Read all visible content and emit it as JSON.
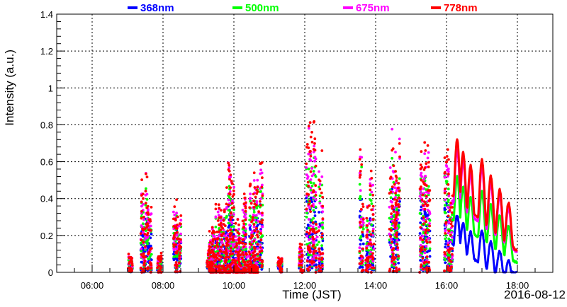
{
  "chart_data": {
    "type": "scatter",
    "title": "",
    "xlabel": "Time (JST)",
    "ylabel": "Intensity (a.u.)",
    "date_label": "2016-08-12",
    "x_unit": "hours JST",
    "xlim": [
      5.0,
      19.0
    ],
    "ylim": [
      0,
      1.4
    ],
    "x_ticks": [
      6,
      8,
      10,
      12,
      14,
      16,
      18
    ],
    "x_tick_labels": [
      "06:00",
      "08:00",
      "10:00",
      "12:00",
      "14:00",
      "16:00",
      "18:00"
    ],
    "y_ticks": [
      0,
      0.2,
      0.4,
      0.6,
      0.8,
      1,
      1.2,
      1.4
    ],
    "y_tick_labels": [
      "0",
      "0.2",
      "0.4",
      "0.6",
      "0.8",
      "1",
      "1.2",
      "1.4"
    ],
    "grid": true,
    "legend_position": "top",
    "series": [
      {
        "name": "368nm",
        "color": "#0000ff",
        "scale": 0.55
      },
      {
        "name": "500nm",
        "color": "#00ff00",
        "scale": 0.78
      },
      {
        "name": "675nm",
        "color": "#ff00ff",
        "scale": 0.93
      },
      {
        "name": "778nm",
        "color": "#ff0000",
        "scale": 1.0
      }
    ],
    "scatter_bursts": [
      {
        "t": 7.08,
        "max": 0.1
      },
      {
        "t": 7.42,
        "max": 0.45
      },
      {
        "t": 7.52,
        "max": 0.62
      },
      {
        "t": 7.62,
        "max": 0.35
      },
      {
        "t": 7.9,
        "max": 0.12
      },
      {
        "t": 8.35,
        "max": 0.4
      },
      {
        "t": 8.45,
        "max": 0.3
      },
      {
        "t": 9.3,
        "max": 0.15
      },
      {
        "t": 9.45,
        "max": 0.35
      },
      {
        "t": 9.6,
        "max": 0.4
      },
      {
        "t": 9.75,
        "max": 0.4
      },
      {
        "t": 9.85,
        "max": 0.63
      },
      {
        "t": 9.95,
        "max": 0.5
      },
      {
        "t": 10.1,
        "max": 0.3
      },
      {
        "t": 10.3,
        "max": 0.4
      },
      {
        "t": 10.5,
        "max": 0.5
      },
      {
        "t": 10.62,
        "max": 0.55
      },
      {
        "t": 10.75,
        "max": 0.62
      },
      {
        "t": 11.3,
        "max": 0.08
      },
      {
        "t": 11.9,
        "max": 0.15
      },
      {
        "t": 12.1,
        "max": 0.75
      },
      {
        "t": 12.2,
        "max": 0.78
      },
      {
        "t": 12.3,
        "max": 0.8
      },
      {
        "t": 12.45,
        "max": 0.6
      },
      {
        "t": 13.6,
        "max": 0.65
      },
      {
        "t": 13.78,
        "max": 0.35
      },
      {
        "t": 13.9,
        "max": 0.62
      },
      {
        "t": 14.45,
        "max": 0.74
      },
      {
        "t": 14.55,
        "max": 0.74
      },
      {
        "t": 14.62,
        "max": 0.7
      },
      {
        "t": 15.3,
        "max": 0.65
      },
      {
        "t": 15.4,
        "max": 0.74
      },
      {
        "t": 15.48,
        "max": 0.72
      },
      {
        "t": 16.0,
        "max": 0.64
      },
      {
        "t": 16.12,
        "max": 0.6
      }
    ],
    "continuous_peaks": [
      {
        "t": 16.3,
        "h": 0.69
      },
      {
        "t": 16.47,
        "h": 0.62
      },
      {
        "t": 16.68,
        "h": 0.55
      },
      {
        "t": 17.0,
        "h": 0.61
      },
      {
        "t": 17.25,
        "h": 0.52
      },
      {
        "t": 17.5,
        "h": 0.45
      },
      {
        "t": 17.75,
        "h": 0.38
      }
    ]
  }
}
